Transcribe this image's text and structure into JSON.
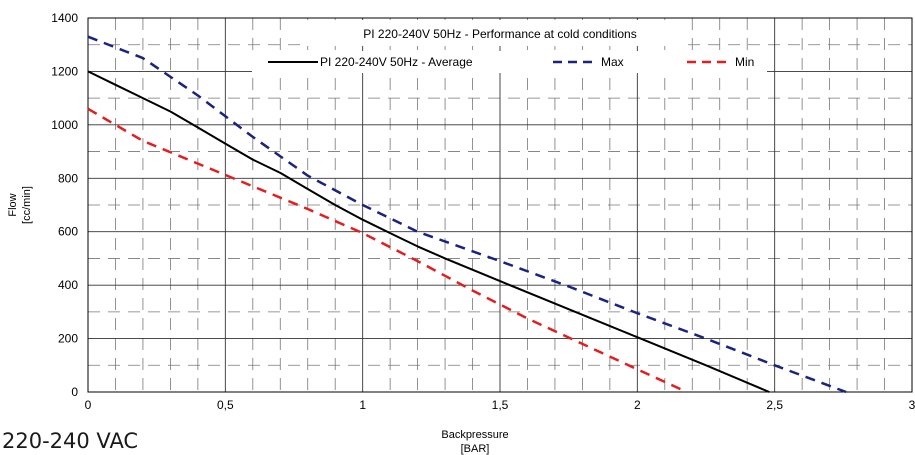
{
  "caption": "220-240 VAC",
  "chart_data": {
    "type": "line",
    "title": "PI 220-240V 50Hz - Performance at cold conditions",
    "xlabel_line1": "Backpressure",
    "xlabel_line2": "[BAR]",
    "ylabel_line1": "Flow",
    "ylabel_line2": "[cc/min]",
    "xlim": [
      0,
      3
    ],
    "ylim": [
      0,
      1400
    ],
    "x_ticks": [
      {
        "value": 0,
        "label": "0"
      },
      {
        "value": 0.5,
        "label": "0,5"
      },
      {
        "value": 1,
        "label": "1"
      },
      {
        "value": 1.5,
        "label": "1,5"
      },
      {
        "value": 2,
        "label": "2"
      },
      {
        "value": 2.5,
        "label": "2,5"
      },
      {
        "value": 3,
        "label": "3"
      }
    ],
    "y_ticks": [
      {
        "value": 0,
        "label": "0"
      },
      {
        "value": 200,
        "label": "200"
      },
      {
        "value": 400,
        "label": "400"
      },
      {
        "value": 600,
        "label": "600"
      },
      {
        "value": 800,
        "label": "800"
      },
      {
        "value": 1000,
        "label": "1000"
      },
      {
        "value": 1200,
        "label": "1200"
      },
      {
        "value": 1400,
        "label": "1400"
      }
    ],
    "grid": true,
    "legend_position": "top-right",
    "series": [
      {
        "name": "PI 220-240V 50Hz - Average",
        "color": "#000000",
        "dash": "solid",
        "x": [
          0,
          0.1,
          0.2,
          0.3,
          0.4,
          0.5,
          0.6,
          0.7,
          0.8,
          0.9,
          1.0,
          1.1,
          1.2,
          1.3,
          1.5,
          1.75,
          2.0,
          2.25,
          2.48
        ],
        "y": [
          1200,
          1150,
          1100,
          1050,
          990,
          930,
          870,
          820,
          760,
          700,
          645,
          595,
          545,
          500,
          415,
          310,
          205,
          100,
          0
        ]
      },
      {
        "name": "Max",
        "color": "#1a237e",
        "dash": "dashed",
        "x": [
          0,
          0.2,
          0.4,
          0.6,
          0.8,
          1.0,
          1.2,
          1.5,
          1.75,
          2.0,
          2.25,
          2.5,
          2.76
        ],
        "y": [
          1330,
          1250,
          1110,
          955,
          810,
          700,
          600,
          490,
          395,
          295,
          200,
          100,
          0
        ]
      },
      {
        "name": "Min",
        "color": "#e02020",
        "dash": "dashed",
        "x": [
          0,
          0.2,
          0.4,
          0.6,
          0.8,
          1.0,
          1.2,
          1.4,
          1.6,
          1.8,
          2.0,
          2.18
        ],
        "y": [
          1060,
          940,
          855,
          770,
          685,
          595,
          490,
          380,
          275,
          180,
          85,
          0
        ]
      }
    ]
  }
}
